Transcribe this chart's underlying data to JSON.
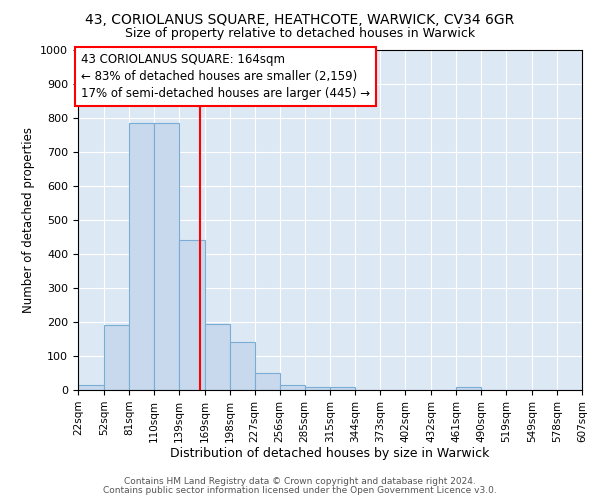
{
  "title1": "43, CORIOLANUS SQUARE, HEATHCOTE, WARWICK, CV34 6GR",
  "title2": "Size of property relative to detached houses in Warwick",
  "xlabel": "Distribution of detached houses by size in Warwick",
  "ylabel": "Number of detached properties",
  "bar_color": "#c8d9ee",
  "bar_edge_color": "#7aadd4",
  "bin_edges": [
    22,
    52,
    81,
    110,
    139,
    169,
    198,
    227,
    256,
    285,
    315,
    344,
    373,
    402,
    432,
    461,
    490,
    519,
    549,
    578,
    607
  ],
  "bar_heights": [
    15,
    190,
    785,
    785,
    440,
    195,
    140,
    50,
    15,
    10,
    10,
    0,
    0,
    0,
    0,
    10,
    0,
    0,
    0,
    0
  ],
  "x_tick_labels": [
    "22sqm",
    "52sqm",
    "81sqm",
    "110sqm",
    "139sqm",
    "169sqm",
    "198sqm",
    "227sqm",
    "256sqm",
    "285sqm",
    "315sqm",
    "344sqm",
    "373sqm",
    "402sqm",
    "432sqm",
    "461sqm",
    "490sqm",
    "519sqm",
    "549sqm",
    "578sqm",
    "607sqm"
  ],
  "ylim": [
    0,
    1000
  ],
  "yticks": [
    0,
    100,
    200,
    300,
    400,
    500,
    600,
    700,
    800,
    900,
    1000
  ],
  "red_line_x": 164,
  "annotation_text": "43 CORIOLANUS SQUARE: 164sqm\n← 83% of detached houses are smaller (2,159)\n17% of semi-detached houses are larger (445) →",
  "annotation_box_color": "white",
  "annotation_box_edgecolor": "red",
  "background_color": "#dde8f5",
  "grid_color": "white",
  "footer_text1": "Contains HM Land Registry data © Crown copyright and database right 2024.",
  "footer_text2": "Contains public sector information licensed under the Open Government Licence v3.0."
}
